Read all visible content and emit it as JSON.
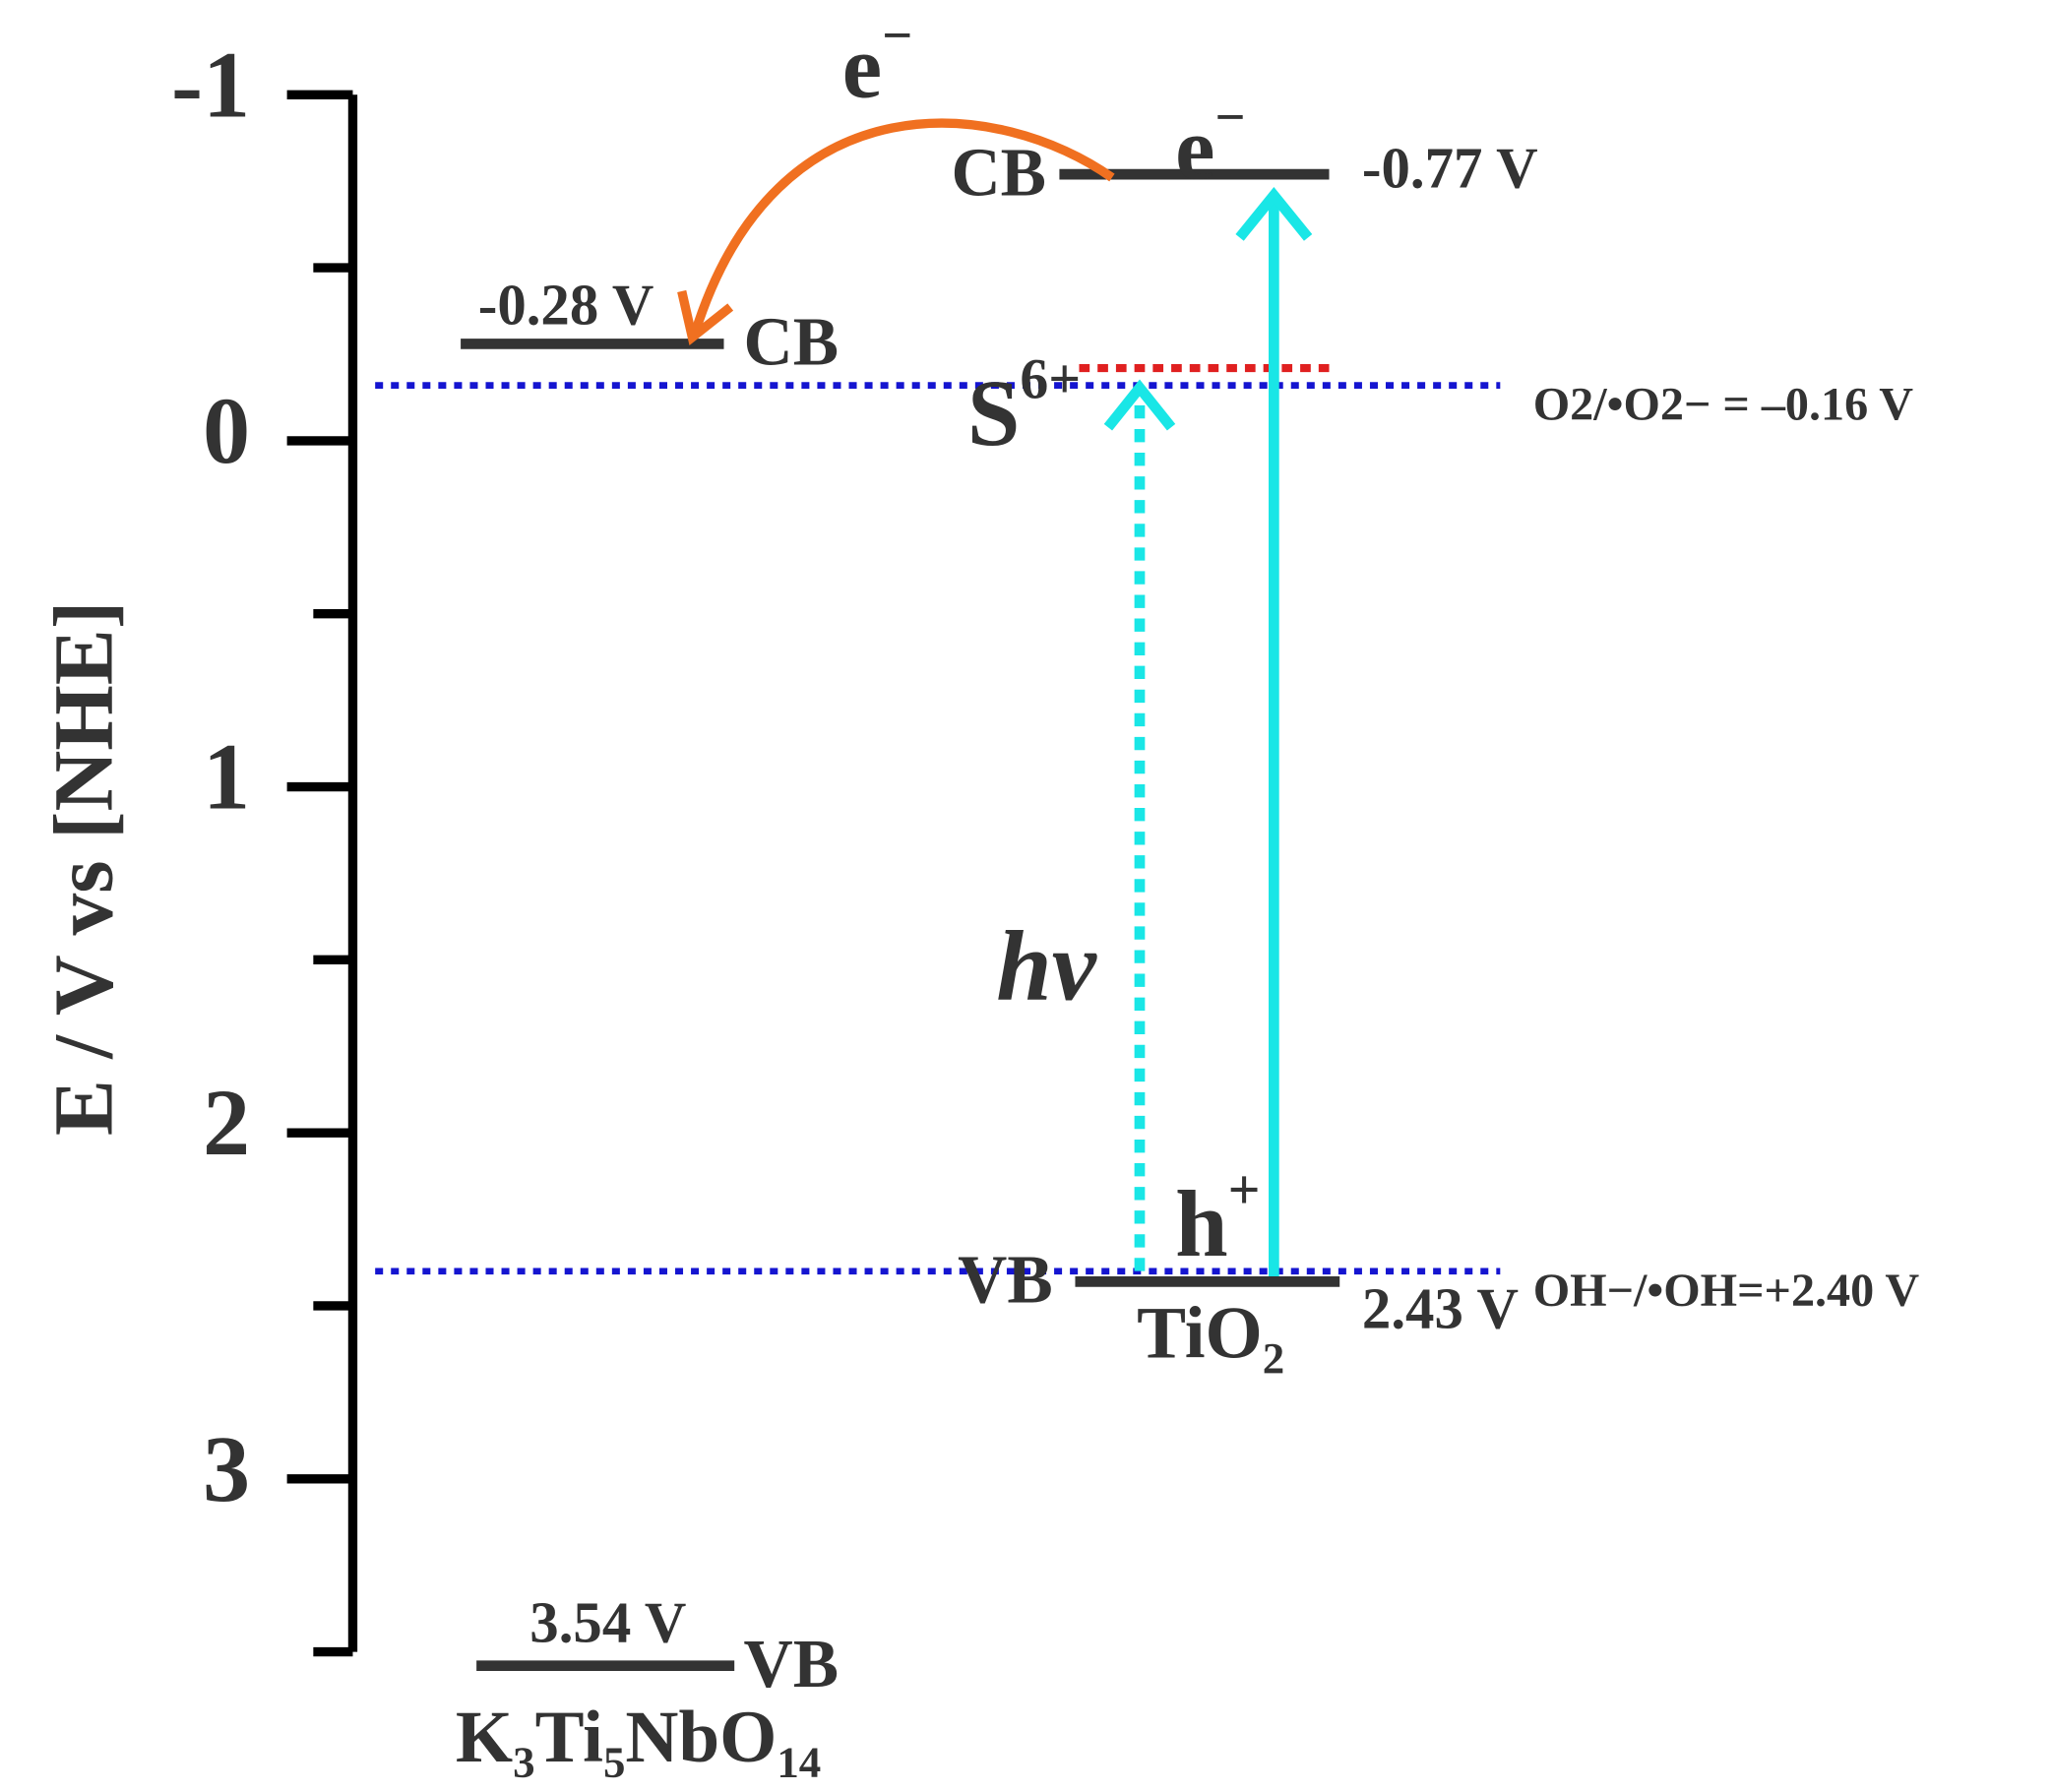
{
  "chart_data": {
    "type": "band",
    "y_label": "E / V vs [NHE]",
    "ylim": [
      -1,
      3.5
    ],
    "yticks": [
      -1,
      0,
      1,
      2,
      3
    ],
    "minor_yticks": [
      -0.5,
      0.5,
      1.5,
      2.5,
      3.5
    ],
    "materials": [
      {
        "name": "K3Ti5NbO14",
        "color": "#1515d0",
        "cb": -0.28,
        "cb_label": "-0.28 V",
        "cb_name": "CB",
        "vb": 3.54,
        "vb_label": "3.54 V",
        "vb_name": "VB"
      },
      {
        "name": "TiO2",
        "color": "#1515d0",
        "cb": -0.77,
        "cb_label": "-0.77 V",
        "cb_name": "CB",
        "vb": 2.43,
        "vb_label": "2.43 V",
        "vb_name": "VB"
      }
    ],
    "redox": [
      {
        "label": "O2/•O2− = –0.16 V",
        "value": -0.16,
        "color": "#1515d0"
      },
      {
        "label": "OH−/•OH=+2.40 V",
        "value": 2.4,
        "color": "#1515d0"
      }
    ],
    "impurity_level": {
      "label": "S6+",
      "value": -0.21,
      "color": "#e02020"
    },
    "annotations": {
      "transfer": "e−",
      "excited": "e−",
      "hole": "h+",
      "light": "hv"
    },
    "arrow_colors": {
      "excitation": "#19e6e6",
      "transfer": "#f07020"
    }
  }
}
